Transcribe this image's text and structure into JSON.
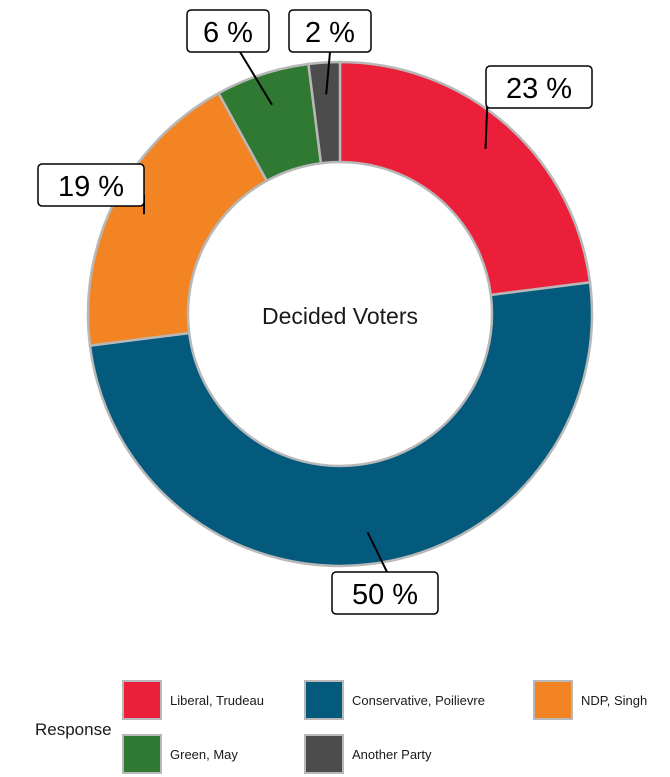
{
  "chart_data": {
    "type": "pie",
    "center_label": "Decided Voters",
    "legend_title": "Response",
    "slices": [
      {
        "label": "Liberal, Trudeau",
        "value": 23,
        "value_label": "23 %",
        "color": "#EC1F3A"
      },
      {
        "label": "Conservative, Poilievre",
        "value": 50,
        "value_label": "50 %",
        "color": "#035A7C"
      },
      {
        "label": "NDP, Singh",
        "value": 19,
        "value_label": "19 %",
        "color": "#F28423"
      },
      {
        "label": "Green, May",
        "value": 6,
        "value_label": "6 %",
        "color": "#2F7933"
      },
      {
        "label": "Another Party",
        "value": 2,
        "value_label": "2 %",
        "color": "#4C4C4C"
      }
    ],
    "legend_placement": "bottom",
    "slice_border_color": "#B8B8B8"
  }
}
